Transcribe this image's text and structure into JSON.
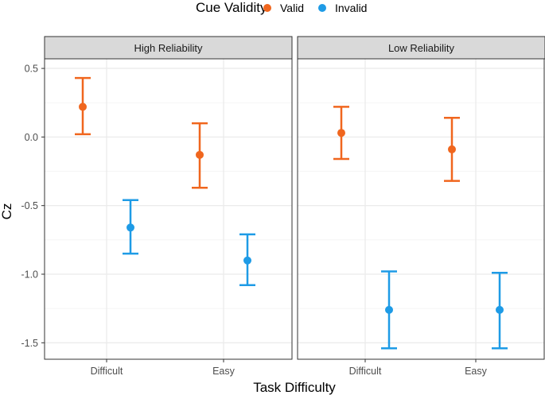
{
  "chart_data": {
    "type": "errorbar",
    "legend": {
      "title": "Cue Validity",
      "position": "top",
      "entries": [
        {
          "name": "Valid",
          "color": "#F0661E"
        },
        {
          "name": "Invalid",
          "color": "#1E9BE6"
        }
      ]
    },
    "xlabel": "Task Difficulty",
    "ylabel": "Cz",
    "categories": [
      "Difficult",
      "Easy"
    ],
    "ylim": [
      -1.62,
      0.57
    ],
    "yticks": [
      0.5,
      0.0,
      -0.5,
      -1.0,
      -1.5
    ],
    "ytick_labels": [
      "0.5",
      "0.0",
      "-0.5",
      "-1.0",
      "-1.5"
    ],
    "grid": true,
    "panels": [
      {
        "title": "High Reliability",
        "series": [
          {
            "name": "Valid",
            "color": "#F0661E",
            "points": [
              {
                "x": "Difficult",
                "y": 0.22,
                "low": 0.02,
                "high": 0.43
              },
              {
                "x": "Easy",
                "y": -0.13,
                "low": -0.37,
                "high": 0.1
              }
            ]
          },
          {
            "name": "Invalid",
            "color": "#1E9BE6",
            "points": [
              {
                "x": "Difficult",
                "y": -0.66,
                "low": -0.85,
                "high": -0.46
              },
              {
                "x": "Easy",
                "y": -0.9,
                "low": -1.08,
                "high": -0.71
              }
            ]
          }
        ]
      },
      {
        "title": "Low Reliability",
        "series": [
          {
            "name": "Valid",
            "color": "#F0661E",
            "points": [
              {
                "x": "Difficult",
                "y": 0.03,
                "low": -0.16,
                "high": 0.22
              },
              {
                "x": "Easy",
                "y": -0.09,
                "low": -0.32,
                "high": 0.14
              }
            ]
          },
          {
            "name": "Invalid",
            "color": "#1E9BE6",
            "points": [
              {
                "x": "Difficult",
                "y": -1.26,
                "low": -1.54,
                "high": -0.98
              },
              {
                "x": "Easy",
                "y": -1.26,
                "low": -1.54,
                "high": -0.99
              }
            ]
          }
        ]
      }
    ]
  }
}
